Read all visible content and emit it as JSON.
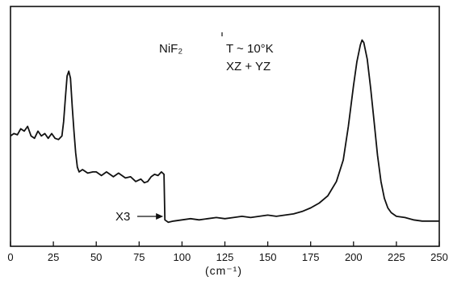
{
  "chart_data": {
    "type": "line",
    "title": "",
    "xlabel": "(cm⁻¹)",
    "ylabel": "",
    "xlim": [
      0,
      250
    ],
    "ylim": [
      0,
      100
    ],
    "grid": false,
    "legend": "none",
    "x_ticks": [
      0,
      25,
      50,
      75,
      100,
      125,
      150,
      175,
      200,
      225,
      250
    ],
    "x_tick_labels": [
      "0",
      "25",
      "50",
      "75",
      "100",
      "125",
      "150",
      "175",
      "200",
      "225",
      "250"
    ],
    "annotations": {
      "compound": "NiF₂",
      "temperature": "T ~ 10°K",
      "polarization": "XZ + YZ",
      "scale_marker": "X3"
    },
    "scale_marker_x": 90,
    "series": [
      {
        "values": [
          [
            0,
            46
          ],
          [
            2,
            47
          ],
          [
            4,
            46.5
          ],
          [
            6,
            49
          ],
          [
            8,
            48
          ],
          [
            10,
            50
          ],
          [
            12,
            46
          ],
          [
            14,
            45
          ],
          [
            16,
            48
          ],
          [
            18,
            46
          ],
          [
            20,
            47
          ],
          [
            22,
            45
          ],
          [
            24,
            47
          ],
          [
            26,
            45
          ],
          [
            28,
            44.5
          ],
          [
            30,
            46
          ],
          [
            31,
            52
          ],
          [
            32,
            62
          ],
          [
            33,
            71
          ],
          [
            34,
            73
          ],
          [
            35,
            70
          ],
          [
            36,
            58
          ],
          [
            37,
            48
          ],
          [
            38,
            39
          ],
          [
            39,
            33
          ],
          [
            40,
            31
          ],
          [
            42,
            32
          ],
          [
            45,
            30.5
          ],
          [
            48,
            31
          ],
          [
            50,
            31
          ],
          [
            53,
            29.5
          ],
          [
            56,
            31
          ],
          [
            60,
            29
          ],
          [
            63,
            30.5
          ],
          [
            67,
            28.5
          ],
          [
            70,
            29
          ],
          [
            73,
            27
          ],
          [
            76,
            28
          ],
          [
            78,
            26.5
          ],
          [
            80,
            27
          ],
          [
            82,
            29
          ],
          [
            84,
            30
          ],
          [
            86,
            29.5
          ],
          [
            88,
            31
          ],
          [
            89.5,
            30
          ],
          [
            90,
            11
          ],
          [
            92,
            10
          ],
          [
            95,
            10.5
          ],
          [
            100,
            11
          ],
          [
            105,
            11.5
          ],
          [
            110,
            11
          ],
          [
            115,
            11.5
          ],
          [
            120,
            12
          ],
          [
            125,
            11.5
          ],
          [
            130,
            12
          ],
          [
            135,
            12.5
          ],
          [
            140,
            12
          ],
          [
            145,
            12.5
          ],
          [
            150,
            13
          ],
          [
            155,
            12.5
          ],
          [
            160,
            13
          ],
          [
            165,
            13.5
          ],
          [
            170,
            14.5
          ],
          [
            175,
            16
          ],
          [
            180,
            18
          ],
          [
            185,
            21
          ],
          [
            190,
            27
          ],
          [
            194,
            36
          ],
          [
            197,
            50
          ],
          [
            200,
            67
          ],
          [
            202,
            77
          ],
          [
            204,
            84
          ],
          [
            205,
            86
          ],
          [
            206,
            85
          ],
          [
            208,
            78
          ],
          [
            210,
            66
          ],
          [
            212,
            52
          ],
          [
            214,
            38
          ],
          [
            216,
            27
          ],
          [
            218,
            20
          ],
          [
            220,
            16
          ],
          [
            222,
            14
          ],
          [
            225,
            12.5
          ],
          [
            230,
            12
          ],
          [
            235,
            11
          ],
          [
            240,
            10.5
          ],
          [
            245,
            10.5
          ],
          [
            250,
            10.5
          ]
        ]
      }
    ]
  }
}
